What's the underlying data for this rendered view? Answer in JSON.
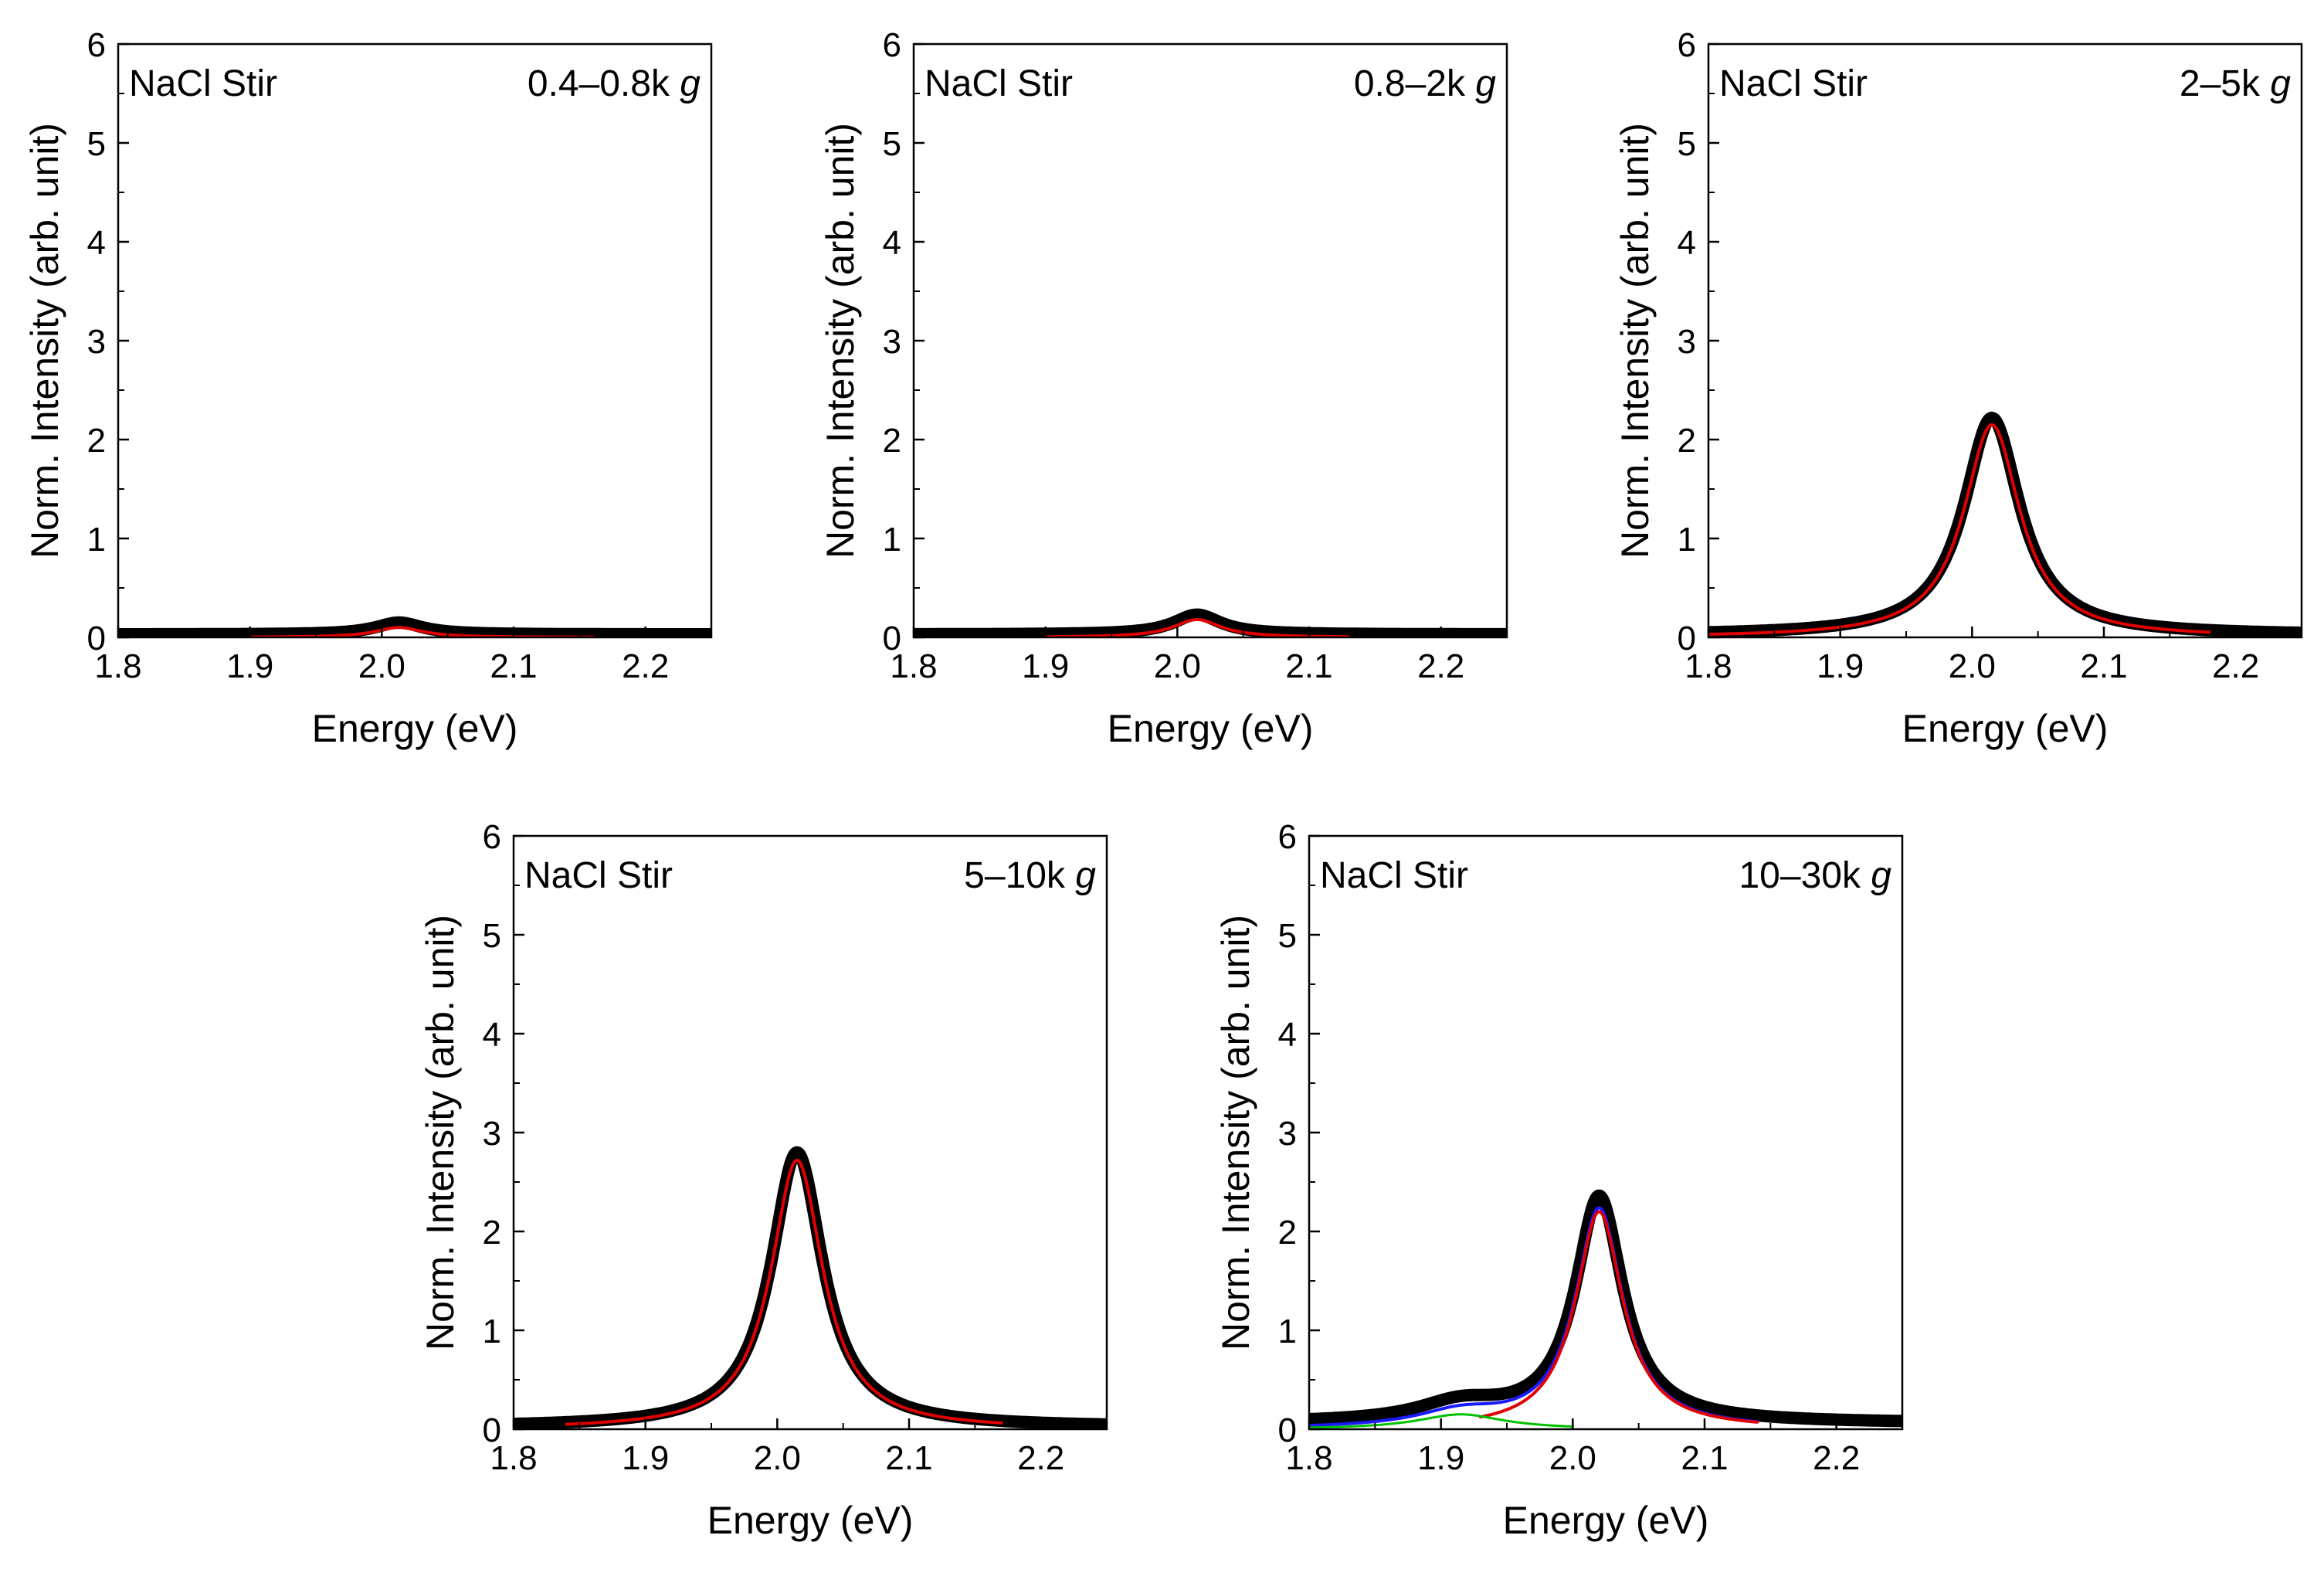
{
  "colors": {
    "data": "#000000",
    "fit": "#e00000",
    "fit_sum": "#1a1aff",
    "fit_component": "#00c000"
  },
  "chart_data": [
    {
      "type": "line",
      "sample": "NaCl Stir",
      "fraction": "0.4–0.8k",
      "unit": "g",
      "xlabel": "Energy (eV)",
      "ylabel": "Norm. Intensity (arb. unit)",
      "xlim": [
        1.8,
        2.25
      ],
      "ylim": [
        0,
        6
      ],
      "xticks": [
        "1.8",
        "1.9",
        "2.0",
        "2.1",
        "2.2"
      ],
      "yticks": [
        "0",
        "1",
        "2",
        "3",
        "4",
        "5",
        "6"
      ],
      "series": [
        {
          "name": "data",
          "peaks": [
            {
              "center": 2.013,
              "amplitude": 0.12,
              "width": 0.022
            }
          ],
          "baseline": 0.03,
          "x_range": [
            1.8,
            2.25
          ]
        },
        {
          "name": "fit",
          "peaks": [
            {
              "center": 2.013,
              "amplitude": 0.1,
              "width": 0.022
            }
          ],
          "baseline": 0.0,
          "x_range": [
            1.9,
            2.16
          ]
        }
      ]
    },
    {
      "type": "line",
      "sample": "NaCl Stir",
      "fraction": "0.8–2k",
      "unit": "g",
      "xlabel": "Energy (eV)",
      "ylabel": "Norm. Intensity (arb. unit)",
      "xlim": [
        1.8,
        2.25
      ],
      "ylim": [
        0,
        6
      ],
      "xticks": [
        "1.8",
        "1.9",
        "2.0",
        "2.1",
        "2.2"
      ],
      "yticks": [
        "0",
        "1",
        "2",
        "3",
        "4",
        "5",
        "6"
      ],
      "series": [
        {
          "name": "data",
          "peaks": [
            {
              "center": 2.015,
              "amplitude": 0.2,
              "width": 0.022
            }
          ],
          "baseline": 0.03,
          "x_range": [
            1.8,
            2.25
          ]
        },
        {
          "name": "fit",
          "peaks": [
            {
              "center": 2.015,
              "amplitude": 0.18,
              "width": 0.022
            }
          ],
          "baseline": 0.0,
          "x_range": [
            1.9,
            2.13
          ]
        }
      ]
    },
    {
      "type": "line",
      "sample": "NaCl Stir",
      "fraction": "2–5k",
      "unit": "g",
      "xlabel": "Energy (eV)",
      "ylabel": "Norm. Intensity (arb. unit)",
      "xlim": [
        1.8,
        2.25
      ],
      "ylim": [
        0,
        6
      ],
      "xticks": [
        "1.8",
        "1.9",
        "2.0",
        "2.1",
        "2.2"
      ],
      "yticks": [
        "0",
        "1",
        "2",
        "3",
        "4",
        "5",
        "6"
      ],
      "series": [
        {
          "name": "data",
          "peaks": [
            {
              "center": 2.015,
              "amplitude": 2.2,
              "width": 0.026
            }
          ],
          "baseline": 0.02,
          "x_range": [
            1.8,
            2.25
          ]
        },
        {
          "name": "fit",
          "peaks": [
            {
              "center": 2.015,
              "amplitude": 2.15,
              "width": 0.026
            }
          ],
          "baseline": 0.0,
          "x_range": [
            1.8,
            2.18
          ]
        }
      ]
    },
    {
      "type": "line",
      "sample": "NaCl Stir",
      "fraction": "5–10k",
      "unit": "g",
      "xlabel": "Energy (eV)",
      "ylabel": "Norm. Intensity (arb. unit)",
      "xlim": [
        1.8,
        2.25
      ],
      "ylim": [
        0,
        6
      ],
      "xticks": [
        "1.8",
        "1.9",
        "2.0",
        "2.1",
        "2.2"
      ],
      "yticks": [
        "0",
        "1",
        "2",
        "3",
        "4",
        "5",
        "6"
      ],
      "series": [
        {
          "name": "data",
          "peaks": [
            {
              "center": 2.015,
              "amplitude": 2.78,
              "width": 0.024
            }
          ],
          "baseline": 0.02,
          "x_range": [
            1.8,
            2.25
          ]
        },
        {
          "name": "fit",
          "peaks": [
            {
              "center": 2.015,
              "amplitude": 2.72,
              "width": 0.024
            }
          ],
          "baseline": 0.0,
          "x_range": [
            1.84,
            2.17
          ]
        }
      ]
    },
    {
      "type": "line",
      "sample": "NaCl Stir",
      "fraction": "10–30k",
      "unit": "g",
      "xlabel": "Energy (eV)",
      "ylabel": "Norm. Intensity (arb. unit)",
      "xlim": [
        1.8,
        2.25
      ],
      "ylim": [
        0,
        6
      ],
      "xticks": [
        "1.8",
        "1.9",
        "2.0",
        "2.1",
        "2.2"
      ],
      "yticks": [
        "0",
        "1",
        "2",
        "3",
        "4",
        "5",
        "6"
      ],
      "series": [
        {
          "name": "data",
          "peaks": [
            {
              "center": 2.02,
              "amplitude": 2.28,
              "width": 0.022
            },
            {
              "center": 1.915,
              "amplitude": 0.18,
              "width": 0.04
            }
          ],
          "baseline": 0.06,
          "x_range": [
            1.8,
            2.25
          ]
        },
        {
          "name": "fit_sum",
          "peaks": [
            {
              "center": 2.02,
              "amplitude": 2.22,
              "width": 0.022
            },
            {
              "center": 1.915,
              "amplitude": 0.15,
              "width": 0.04
            }
          ],
          "baseline": 0.0,
          "x_range": [
            1.8,
            2.14
          ]
        },
        {
          "name": "fit",
          "peaks": [
            {
              "center": 2.02,
              "amplitude": 2.2,
              "width": 0.022
            }
          ],
          "baseline": 0.0,
          "x_range": [
            1.93,
            2.14
          ]
        },
        {
          "name": "fit_component",
          "peaks": [
            {
              "center": 1.915,
              "amplitude": 0.15,
              "width": 0.04
            }
          ],
          "baseline": 0.0,
          "x_range": [
            1.8,
            2.0
          ]
        }
      ]
    }
  ]
}
